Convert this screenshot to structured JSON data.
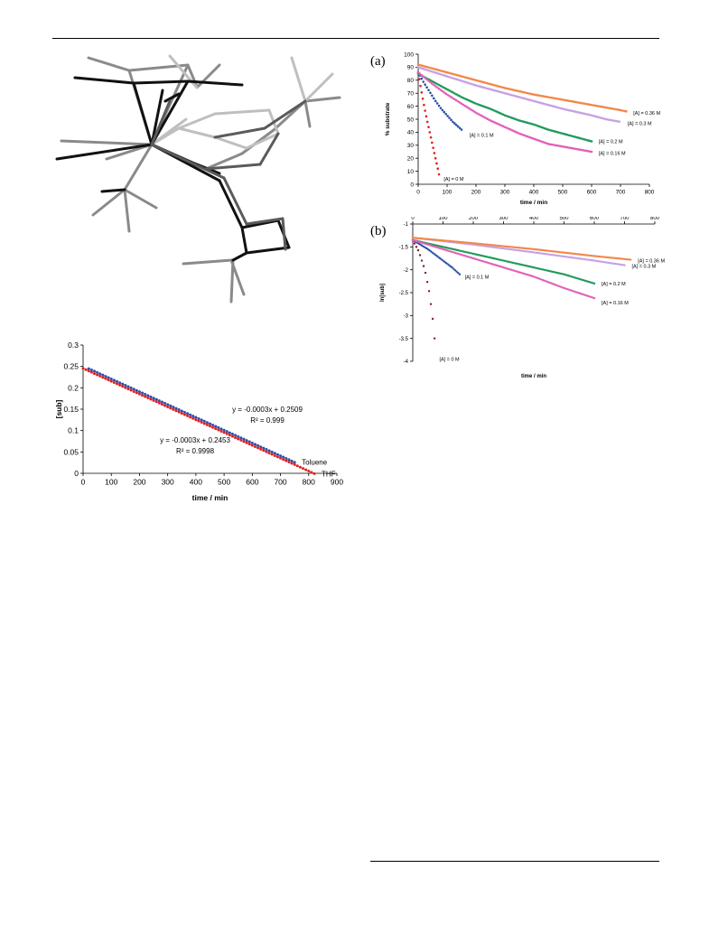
{
  "page": {
    "panel_a_letter": "(a)",
    "panel_b_letter": "(b)"
  },
  "chart_data": [
    {
      "id": "sub-vs-time",
      "type": "scatter",
      "title": "",
      "xlabel": "time / min",
      "ylabel": "[sub]",
      "xlim": [
        0,
        900
      ],
      "ylim": [
        0,
        0.3
      ],
      "xticks": [
        0,
        100,
        200,
        300,
        400,
        500,
        600,
        700,
        800,
        900
      ],
      "yticks": [
        0,
        0.05,
        0.1,
        0.15,
        0.2,
        0.25,
        0.3
      ],
      "grid": false,
      "series": [
        {
          "name": "Toluene",
          "color": "#2b4fa8",
          "x_start": 20,
          "x_end": 755,
          "x_step": 10,
          "slope": -0.0003,
          "intercept": 0.2509,
          "fit": "y = -0.0003x + 0.2509",
          "r2": "R² = 0.999"
        },
        {
          "name": "THF",
          "color": "#e02020",
          "x_start": 0,
          "x_end": 820,
          "x_step": 10,
          "slope": -0.0003,
          "intercept": 0.2453,
          "fit": "y = -0.0003x + 0.2453",
          "r2": "R² = 0.9998"
        }
      ]
    },
    {
      "id": "percent-substrate",
      "type": "scatter",
      "title": "",
      "xlabel": "time / min",
      "ylabel": "% substrate",
      "xlim": [
        0,
        800
      ],
      "ylim": [
        0,
        100
      ],
      "xticks": [
        0,
        100,
        200,
        300,
        400,
        500,
        600,
        700,
        800
      ],
      "yticks": [
        0,
        10,
        20,
        30,
        40,
        50,
        60,
        70,
        80,
        90,
        100
      ],
      "grid": false,
      "series": [
        {
          "name": "[A] = 0 M",
          "color": "#e02020",
          "points": [
            [
              0,
              86
            ],
            [
              10,
              73
            ],
            [
              20,
              61
            ],
            [
              30,
              50
            ],
            [
              40,
              40
            ],
            [
              50,
              30
            ],
            [
              60,
              20
            ],
            [
              70,
              10
            ],
            [
              75,
              4
            ]
          ]
        },
        {
          "name": "[A] = 0.1 M",
          "color": "#2b4fa8",
          "points": [
            [
              0,
              86
            ],
            [
              20,
              78
            ],
            [
              40,
              71
            ],
            [
              60,
              64
            ],
            [
              80,
              58
            ],
            [
              100,
              53
            ],
            [
              120,
              48
            ],
            [
              140,
              44
            ],
            [
              155,
              41
            ]
          ]
        },
        {
          "name": "[A] = 0.2 M",
          "color": "#1f9a5a",
          "points": [
            [
              0,
              85
            ],
            [
              50,
              79
            ],
            [
              100,
              73
            ],
            [
              150,
              67
            ],
            [
              200,
              62
            ],
            [
              250,
              58
            ],
            [
              300,
              53
            ],
            [
              350,
              49
            ],
            [
              400,
              46
            ],
            [
              450,
              42
            ],
            [
              500,
              39
            ],
            [
              550,
              36
            ],
            [
              600,
              33
            ]
          ]
        },
        {
          "name": "[A] = 0.16 M",
          "color": "#e060b8",
          "points": [
            [
              0,
              86
            ],
            [
              50,
              77
            ],
            [
              100,
              69
            ],
            [
              150,
              62
            ],
            [
              200,
              55
            ],
            [
              250,
              49
            ],
            [
              300,
              44
            ],
            [
              350,
              39
            ],
            [
              400,
              35
            ],
            [
              450,
              31
            ],
            [
              500,
              29
            ],
            [
              550,
              27
            ],
            [
              600,
              25
            ]
          ]
        },
        {
          "name": "[A] = 0.3 M",
          "color": "#c7a0e4",
          "points": [
            [
              0,
              90
            ],
            [
              100,
              83
            ],
            [
              200,
              76
            ],
            [
              300,
              70
            ],
            [
              400,
              64
            ],
            [
              500,
              58
            ],
            [
              600,
              53
            ],
            [
              650,
              50
            ],
            [
              700,
              48
            ]
          ]
        },
        {
          "name": "[A] = 0.36 M",
          "color": "#f2874a",
          "points": [
            [
              0,
              92
            ],
            [
              100,
              86
            ],
            [
              200,
              80
            ],
            [
              300,
              74
            ],
            [
              400,
              69
            ],
            [
              500,
              65
            ],
            [
              600,
              61
            ],
            [
              700,
              57
            ],
            [
              720,
              56
            ]
          ]
        }
      ]
    },
    {
      "id": "ln-sub",
      "type": "scatter",
      "title": "",
      "xlabel": "time / min",
      "ylabel": "ln[sub]",
      "xlim": [
        0,
        800
      ],
      "ylim": [
        -4,
        -1
      ],
      "xticks": [
        0,
        100,
        200,
        300,
        400,
        500,
        600,
        700,
        800
      ],
      "yticks": [
        -1,
        -1.5,
        -2,
        -2.5,
        -3,
        -3.5,
        -4
      ],
      "grid": false,
      "series": [
        {
          "name": "[A] = 0 M",
          "color": "#7a1f1f",
          "points": [
            [
              0,
              -1.35
            ],
            [
              20,
              -1.6
            ],
            [
              40,
              -2.0
            ],
            [
              55,
              -2.5
            ],
            [
              65,
              -3.0
            ],
            [
              72,
              -3.5
            ],
            [
              76,
              -3.8
            ]
          ]
        },
        {
          "name": "[A] = 0.1 M",
          "color": "#2b4fa8",
          "points": [
            [
              0,
              -1.35
            ],
            [
              50,
              -1.55
            ],
            [
              100,
              -1.8
            ],
            [
              130,
              -1.95
            ],
            [
              155,
              -2.1
            ]
          ]
        },
        {
          "name": "[A] = 0.2 M",
          "color": "#1f9a5a",
          "points": [
            [
              0,
              -1.35
            ],
            [
              100,
              -1.5
            ],
            [
              200,
              -1.65
            ],
            [
              300,
              -1.8
            ],
            [
              400,
              -1.95
            ],
            [
              500,
              -2.1
            ],
            [
              600,
              -2.3
            ]
          ]
        },
        {
          "name": "[A] = 0.16 M",
          "color": "#e060b8",
          "points": [
            [
              0,
              -1.35
            ],
            [
              100,
              -1.55
            ],
            [
              200,
              -1.75
            ],
            [
              300,
              -1.95
            ],
            [
              400,
              -2.15
            ],
            [
              500,
              -2.4
            ],
            [
              600,
              -2.62
            ]
          ]
        },
        {
          "name": "[A] = 0.3 M",
          "color": "#c7a0e4",
          "points": [
            [
              0,
              -1.3
            ],
            [
              200,
              -1.45
            ],
            [
              400,
              -1.62
            ],
            [
              600,
              -1.8
            ],
            [
              700,
              -1.9
            ]
          ]
        },
        {
          "name": "[A] = 0.36 M",
          "color": "#f2874a",
          "points": [
            [
              0,
              -1.3
            ],
            [
              200,
              -1.42
            ],
            [
              400,
              -1.55
            ],
            [
              600,
              -1.7
            ],
            [
              720,
              -1.78
            ]
          ]
        }
      ]
    }
  ]
}
